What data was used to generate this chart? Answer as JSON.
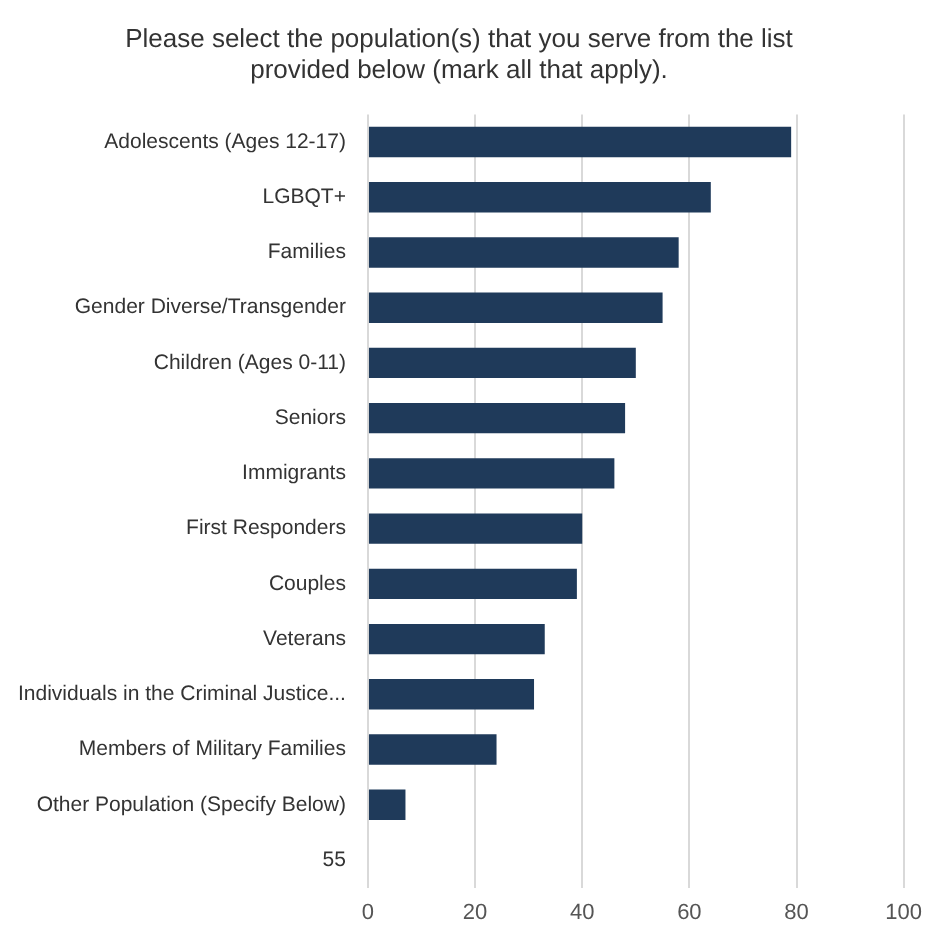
{
  "chart_data": {
    "type": "bar",
    "orientation": "horizontal",
    "title": "Please select the population(s) that you serve from the list provided below (mark all that apply).",
    "categories": [
      "Adolescents (Ages 12-17)",
      "LGBQT+",
      "Families",
      "Gender Diverse/Transgender",
      "Children (Ages 0-11)",
      "Seniors",
      "Immigrants",
      "First Responders",
      "Couples",
      "Veterans",
      "Individuals in the Criminal Justice...",
      "Members of Military Families",
      "Other Population (Specify Below)",
      "55"
    ],
    "values": [
      79,
      64,
      58,
      55,
      50,
      48,
      46,
      40,
      39,
      33,
      31,
      24,
      7,
      0
    ],
    "color": "#1f3a5a",
    "xlim": [
      0,
      100
    ],
    "xticks": [
      0,
      20,
      40,
      60,
      80,
      100
    ],
    "grid": "x"
  }
}
